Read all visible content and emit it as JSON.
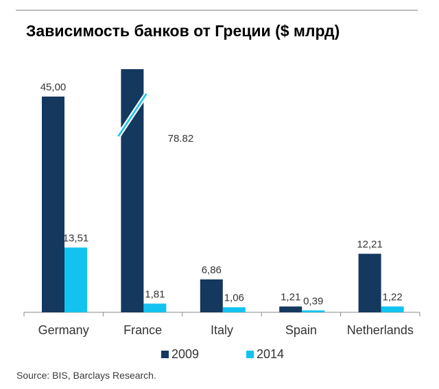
{
  "title": "Зависимость банков от Греции ($ млрд)",
  "source": "Source: BIS, Barclays Research.",
  "colors": {
    "s2009": "#14385e",
    "s2014": "#13c3ef",
    "axis": "#888888",
    "text": "#333333"
  },
  "chart_data": {
    "type": "bar",
    "title": "Зависимость банков от Греции ($ млрд)",
    "categories": [
      "Germany",
      "France",
      "Italy",
      "Spain",
      "Netherlands"
    ],
    "series": [
      {
        "name": "2009",
        "values": [
          45.0,
          78.82,
          6.86,
          1.21,
          12.21
        ],
        "labels": [
          "45,00",
          "78.82",
          "6,86",
          "1,21",
          "12,21"
        ]
      },
      {
        "name": "2014",
        "values": [
          13.51,
          1.81,
          1.06,
          0.39,
          1.22
        ],
        "labels": [
          "13,51",
          "1,81",
          "1,06",
          "0,39",
          "1,22"
        ]
      }
    ],
    "legend": "bottom",
    "grid": false,
    "axis_break": "France 2009 bar (break between ~45 and 78.82)"
  }
}
